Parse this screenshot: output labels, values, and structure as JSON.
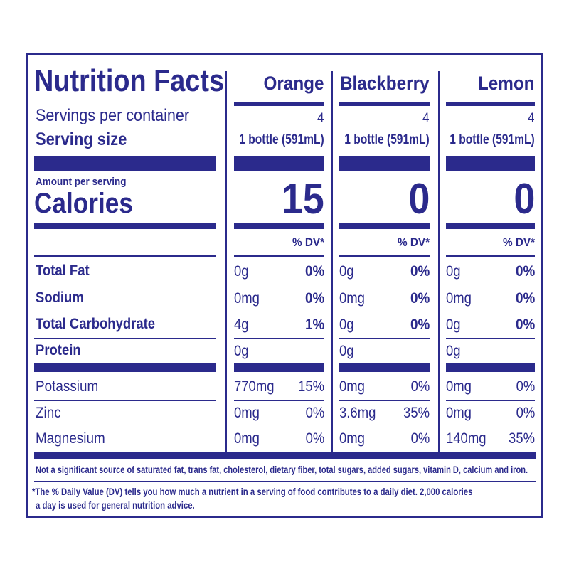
{
  "header": {
    "title": "Nutrition Facts",
    "servings_label": "Servings per container",
    "serving_size_label": "Serving size",
    "amount_label": "Amount per serving",
    "calories_label": "Calories",
    "dv_label": "% DV*"
  },
  "columns": [
    {
      "name": "Orange",
      "servings": "4",
      "serving_size": "1 bottle (591mL)",
      "calories": "15"
    },
    {
      "name": "Blackberry",
      "servings": "4",
      "serving_size": "1 bottle (591mL)",
      "calories": "0"
    },
    {
      "name": "Lemon",
      "servings": "4",
      "serving_size": "1 bottle (591mL)",
      "calories": "0"
    }
  ],
  "nutrients": [
    {
      "label": "Total Fat",
      "bold": true,
      "values": [
        {
          "amount": "0g",
          "dv": "0%"
        },
        {
          "amount": "0g",
          "dv": "0%"
        },
        {
          "amount": "0g",
          "dv": "0%"
        }
      ]
    },
    {
      "label": "Sodium",
      "bold": true,
      "values": [
        {
          "amount": "0mg",
          "dv": "0%"
        },
        {
          "amount": "0mg",
          "dv": "0%"
        },
        {
          "amount": "0mg",
          "dv": "0%"
        }
      ]
    },
    {
      "label": "Total Carbohydrate",
      "bold": true,
      "values": [
        {
          "amount": "4g",
          "dv": "1%"
        },
        {
          "amount": "0g",
          "dv": "0%"
        },
        {
          "amount": "0g",
          "dv": "0%"
        }
      ]
    },
    {
      "label": "Protein",
      "bold": true,
      "values": [
        {
          "amount": "0g",
          "dv": ""
        },
        {
          "amount": "0g",
          "dv": ""
        },
        {
          "amount": "0g",
          "dv": ""
        }
      ]
    }
  ],
  "minerals": [
    {
      "label": "Potassium",
      "values": [
        {
          "amount": "770mg",
          "dv": "15%"
        },
        {
          "amount": "0mg",
          "dv": "0%"
        },
        {
          "amount": "0mg",
          "dv": "0%"
        }
      ]
    },
    {
      "label": "Zinc",
      "values": [
        {
          "amount": "0mg",
          "dv": "0%"
        },
        {
          "amount": "3.6mg",
          "dv": "35%"
        },
        {
          "amount": "0mg",
          "dv": "0%"
        }
      ]
    },
    {
      "label": "Magnesium",
      "values": [
        {
          "amount": "0mg",
          "dv": "0%"
        },
        {
          "amount": "0mg",
          "dv": "0%"
        },
        {
          "amount": "140mg",
          "dv": "35%"
        }
      ]
    }
  ],
  "footnotes": {
    "not_significant": "Not a significant source of saturated fat, trans fat, cholesterol, dietary fiber, total sugars, added sugars, vitamin D, calcium and iron.",
    "dv_line1": "*The % Daily Value (DV) tells you how much a nutrient in a serving of food contributes to a daily diet. 2,000 calories",
    "dv_line2": "a day is used for general nutrition advice."
  },
  "colors": {
    "ink": "#2b2a8c",
    "background": "#ffffff"
  }
}
